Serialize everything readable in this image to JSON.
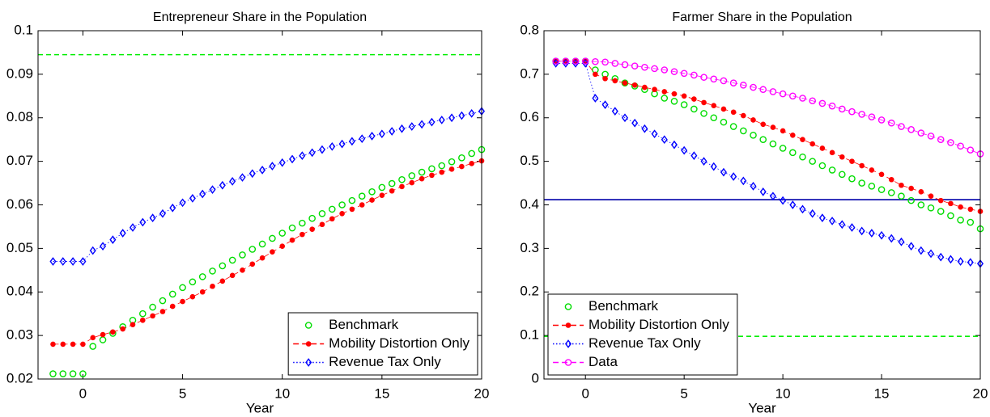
{
  "chart_data": [
    {
      "type": "line",
      "title": "Entrepreneur Share in the Population",
      "x_label": "Year",
      "xlim": [
        -2.25,
        20
      ],
      "xticks": [
        0,
        5,
        10,
        15,
        20
      ],
      "ylim": [
        0.02,
        0.1
      ],
      "yticks": [
        0.02,
        0.03,
        0.04,
        0.05,
        0.06,
        0.07,
        0.08,
        0.09,
        0.1
      ],
      "legend": "lower right",
      "x": [
        -1.5,
        -1,
        -0.5,
        0,
        0.5,
        1,
        1.5,
        2,
        2.5,
        3,
        3.5,
        4,
        4.5,
        5,
        5.5,
        6,
        6.5,
        7,
        7.5,
        8,
        8.5,
        9,
        9.5,
        10,
        10.5,
        11,
        11.5,
        12,
        12.5,
        13,
        13.5,
        14,
        14.5,
        15,
        15.5,
        16,
        16.5,
        17,
        17.5,
        18,
        18.5,
        19,
        19.5,
        20
      ],
      "reference_lines": [
        {
          "value": 0.0945,
          "color": "#00ee00",
          "dash": true
        }
      ],
      "series": [
        {
          "name": "Benchmark",
          "color": "#00dd00",
          "marker": "circle",
          "dash": "none",
          "values": [
            0.0212,
            0.0212,
            0.0212,
            0.0212,
            0.0275,
            0.029,
            0.0305,
            0.032,
            0.0335,
            0.035,
            0.0365,
            0.038,
            0.0395,
            0.041,
            0.0423,
            0.0435,
            0.0448,
            0.046,
            0.0473,
            0.0485,
            0.0498,
            0.051,
            0.0523,
            0.0535,
            0.0547,
            0.0558,
            0.0569,
            0.058,
            0.059,
            0.06,
            0.061,
            0.062,
            0.063,
            0.064,
            0.0649,
            0.0658,
            0.0667,
            0.0675,
            0.0683,
            0.069,
            0.0699,
            0.0708,
            0.0718,
            0.0727
          ]
        },
        {
          "name": "Mobility Distortion Only",
          "color": "#ff0000",
          "marker": "dot",
          "dash": "dashed",
          "values": [
            0.028,
            0.028,
            0.028,
            0.028,
            0.0295,
            0.0302,
            0.0308,
            0.0315,
            0.0325,
            0.0335,
            0.0345,
            0.0355,
            0.0367,
            0.0378,
            0.0389,
            0.04,
            0.0413,
            0.0425,
            0.0438,
            0.045,
            0.0464,
            0.0478,
            0.0492,
            0.0505,
            0.0519,
            0.0532,
            0.0544,
            0.0555,
            0.0568,
            0.058,
            0.059,
            0.06,
            0.0611,
            0.0622,
            0.0632,
            0.0642,
            0.0651,
            0.066,
            0.0668,
            0.0675,
            0.0682,
            0.0688,
            0.0695,
            0.0701
          ]
        },
        {
          "name": "Revenue Tax Only",
          "color": "#0000ff",
          "marker": "diamond",
          "dash": "dotted",
          "values": [
            0.047,
            0.047,
            0.047,
            0.047,
            0.0495,
            0.0505,
            0.052,
            0.0535,
            0.0548,
            0.056,
            0.057,
            0.058,
            0.0593,
            0.0605,
            0.0615,
            0.0625,
            0.0635,
            0.0645,
            0.0654,
            0.0663,
            0.0672,
            0.068,
            0.0689,
            0.0697,
            0.0705,
            0.0713,
            0.072,
            0.0727,
            0.0734,
            0.074,
            0.0746,
            0.0752,
            0.0758,
            0.0763,
            0.0769,
            0.0775,
            0.078,
            0.0785,
            0.079,
            0.0795,
            0.08,
            0.0805,
            0.081,
            0.0815
          ]
        }
      ]
    },
    {
      "type": "line",
      "title": "Farmer Share in the Population",
      "x_label": "Year",
      "xlim": [
        -2.1,
        20
      ],
      "xticks": [
        0,
        5,
        10,
        15,
        20
      ],
      "ylim": [
        0,
        0.8
      ],
      "yticks": [
        0,
        0.1,
        0.2,
        0.3,
        0.4,
        0.5,
        0.6,
        0.7,
        0.8
      ],
      "legend": "lower left",
      "x": [
        -1.5,
        -1,
        -0.5,
        0,
        0.5,
        1,
        1.5,
        2,
        2.5,
        3,
        3.5,
        4,
        4.5,
        5,
        5.5,
        6,
        6.5,
        7,
        7.5,
        8,
        8.5,
        9,
        9.5,
        10,
        10.5,
        11,
        11.5,
        12,
        12.5,
        13,
        13.5,
        14,
        14.5,
        15,
        15.5,
        16,
        16.5,
        17,
        17.5,
        18,
        18.5,
        19,
        19.5,
        20
      ],
      "reference_lines": [
        {
          "value": 0.098,
          "color": "#00ee00",
          "dash": true
        },
        {
          "value": 0.412,
          "color": "#0000aa",
          "dash": false
        }
      ],
      "series": [
        {
          "name": "Benchmark",
          "color": "#00dd00",
          "marker": "circle",
          "dash": "none",
          "values": [
            0.73,
            0.73,
            0.73,
            0.73,
            0.71,
            0.7,
            0.69,
            0.68,
            0.673,
            0.665,
            0.655,
            0.645,
            0.638,
            0.63,
            0.62,
            0.61,
            0.6,
            0.59,
            0.58,
            0.57,
            0.56,
            0.55,
            0.54,
            0.53,
            0.52,
            0.51,
            0.5,
            0.49,
            0.48,
            0.47,
            0.46,
            0.45,
            0.443,
            0.435,
            0.428,
            0.42,
            0.41,
            0.4,
            0.393,
            0.385,
            0.375,
            0.365,
            0.36,
            0.345
          ]
        },
        {
          "name": "Mobility Distortion Only",
          "color": "#ff0000",
          "marker": "dot",
          "dash": "dashed",
          "values": [
            0.73,
            0.73,
            0.73,
            0.73,
            0.7,
            0.69,
            0.685,
            0.68,
            0.675,
            0.67,
            0.665,
            0.66,
            0.655,
            0.65,
            0.643,
            0.635,
            0.628,
            0.62,
            0.613,
            0.605,
            0.595,
            0.585,
            0.578,
            0.57,
            0.56,
            0.55,
            0.54,
            0.53,
            0.52,
            0.51,
            0.5,
            0.49,
            0.48,
            0.47,
            0.458,
            0.445,
            0.438,
            0.43,
            0.42,
            0.41,
            0.403,
            0.395,
            0.39,
            0.385
          ]
        },
        {
          "name": "Revenue Tax Only",
          "color": "#0000ff",
          "marker": "diamond",
          "dash": "dotted",
          "values": [
            0.725,
            0.725,
            0.725,
            0.725,
            0.645,
            0.63,
            0.615,
            0.6,
            0.588,
            0.575,
            0.563,
            0.55,
            0.538,
            0.525,
            0.513,
            0.5,
            0.488,
            0.475,
            0.465,
            0.455,
            0.443,
            0.43,
            0.42,
            0.41,
            0.4,
            0.39,
            0.38,
            0.37,
            0.363,
            0.355,
            0.348,
            0.34,
            0.335,
            0.33,
            0.323,
            0.315,
            0.305,
            0.295,
            0.288,
            0.28,
            0.275,
            0.27,
            0.268,
            0.265
          ]
        },
        {
          "name": "Data",
          "color": "#ff00ff",
          "marker": "circle",
          "dash": "dashed",
          "values": [
            0.73,
            0.73,
            0.73,
            0.73,
            0.729,
            0.728,
            0.725,
            0.722,
            0.719,
            0.716,
            0.713,
            0.71,
            0.706,
            0.702,
            0.698,
            0.693,
            0.689,
            0.685,
            0.68,
            0.675,
            0.67,
            0.665,
            0.66,
            0.655,
            0.65,
            0.645,
            0.639,
            0.633,
            0.627,
            0.62,
            0.614,
            0.608,
            0.602,
            0.595,
            0.588,
            0.58,
            0.573,
            0.565,
            0.558,
            0.55,
            0.543,
            0.535,
            0.526,
            0.517
          ]
        }
      ]
    }
  ]
}
